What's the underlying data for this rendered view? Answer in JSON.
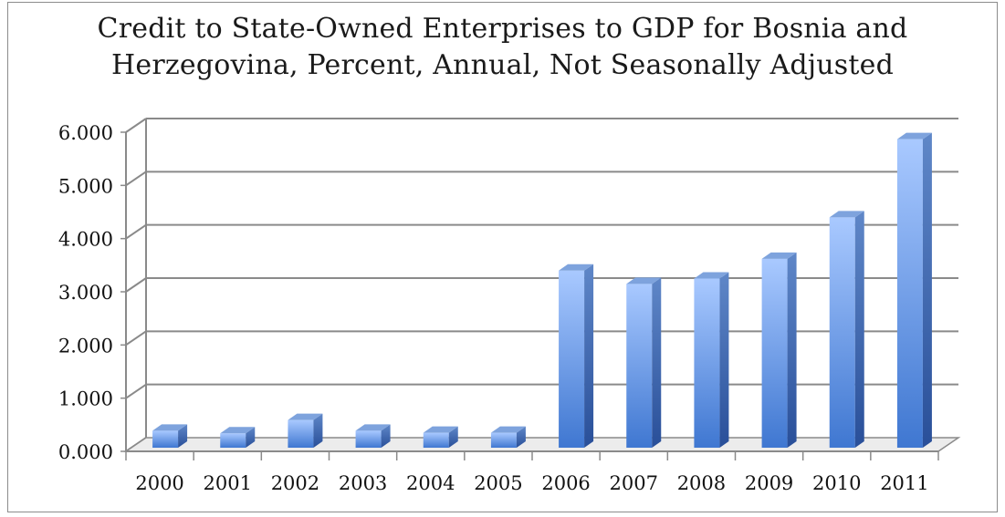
{
  "chart_data": {
    "type": "bar",
    "title_lines": [
      "Credit to State-Owned Enterprises to GDP for Bosnia and",
      "Herzegovina, Percent, Annual, Not Seasonally Adjusted"
    ],
    "categories": [
      "2000",
      "2001",
      "2002",
      "2003",
      "2004",
      "2005",
      "2006",
      "2007",
      "2008",
      "2009",
      "2010",
      "2011"
    ],
    "values": [
      0.32,
      0.27,
      0.52,
      0.32,
      0.28,
      0.28,
      3.33,
      3.08,
      3.18,
      3.55,
      4.33,
      5.8
    ],
    "xlabel": "",
    "ylabel": "",
    "ylim": [
      0,
      6
    ],
    "yticks": [
      "0.000",
      "1.000",
      "2.000",
      "3.000",
      "4.000",
      "5.000",
      "6.000"
    ],
    "style": "3d-column",
    "grid": true,
    "legend": "none",
    "bar_color": "#4f86d6"
  }
}
